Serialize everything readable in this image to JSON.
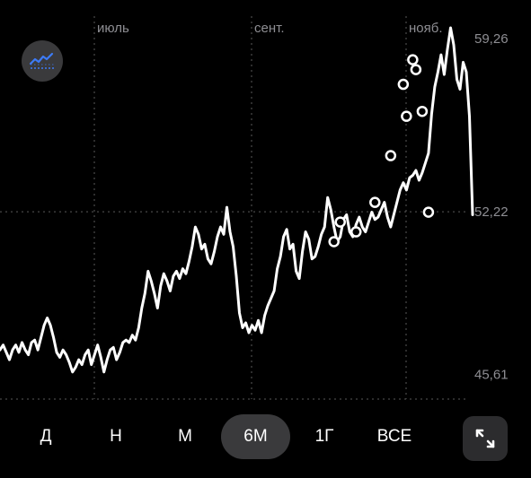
{
  "chart_data": {
    "type": "line",
    "x_labels": [
      "июль",
      "сент.",
      "нояб."
    ],
    "y_tick_labels": [
      "59,26",
      "52,22",
      "45,61"
    ],
    "y_ticks": [
      59.26,
      52.22,
      45.61
    ],
    "ylim": [
      44.6,
      60.1
    ],
    "current_value": 52.22,
    "grid": true,
    "series": [
      {
        "values": [
          46.6,
          46.8,
          46.5,
          46.2,
          46.6,
          46.8,
          46.5,
          46.9,
          46.6,
          46.4,
          46.9,
          47.0,
          46.6,
          47.1,
          47.6,
          47.9,
          47.6,
          47.1,
          46.5,
          46.3,
          46.6,
          46.4,
          46.1,
          45.7,
          45.9,
          46.2,
          46.0,
          46.4,
          46.6,
          46.0,
          46.4,
          46.8,
          46.3,
          45.7,
          46.2,
          46.6,
          46.7,
          46.2,
          46.5,
          46.9,
          47.0,
          46.9,
          47.2,
          47.0,
          47.5,
          48.3,
          48.9,
          49.8,
          49.4,
          48.9,
          48.3,
          49.2,
          49.7,
          49.4,
          49.0,
          49.6,
          49.8,
          49.5,
          49.9,
          49.7,
          50.2,
          50.8,
          51.6,
          51.3,
          50.7,
          50.9,
          50.3,
          50.1,
          50.6,
          51.2,
          51.6,
          51.3,
          52.4,
          51.4,
          50.8,
          49.6,
          48.1,
          47.5,
          47.7,
          47.3,
          47.6,
          47.4,
          47.8,
          47.3,
          48.0,
          48.4,
          48.7,
          49.0,
          49.9,
          50.4,
          51.2,
          51.5,
          50.7,
          50.9,
          49.8,
          49.5,
          50.6,
          51.4,
          51.1,
          50.3,
          50.4,
          50.8,
          51.3,
          51.6,
          52.8,
          52.3,
          51.6,
          51.0,
          51.2,
          51.9,
          52.1,
          51.4,
          51.2,
          51.7,
          52.0,
          51.6,
          51.4,
          51.8,
          52.2,
          51.9,
          52.0,
          52.3,
          52.6,
          52.0,
          51.6,
          52.1,
          52.6,
          53.1,
          53.4,
          53.1,
          53.6,
          53.7,
          53.9,
          53.5,
          53.8,
          54.2,
          54.6,
          56.2,
          57.3,
          57.9,
          58.6,
          57.8,
          58.8,
          59.7,
          59.0,
          57.6,
          57.2,
          58.3,
          57.9,
          56.1,
          52.1
        ]
      }
    ],
    "markers": [
      {
        "i": 106,
        "v": 51.0
      },
      {
        "i": 108,
        "v": 51.8
      },
      {
        "i": 113,
        "v": 51.4
      },
      {
        "i": 119,
        "v": 52.6
      },
      {
        "i": 124,
        "v": 54.5
      },
      {
        "i": 128,
        "v": 57.4
      },
      {
        "i": 129,
        "v": 56.1
      },
      {
        "i": 131,
        "v": 58.4
      },
      {
        "i": 132,
        "v": 58.0
      },
      {
        "i": 134,
        "v": 56.3
      },
      {
        "i": 136,
        "v": 52.2
      }
    ]
  },
  "periods": [
    {
      "label": "Д",
      "active": false
    },
    {
      "label": "Н",
      "active": false
    },
    {
      "label": "М",
      "active": false
    },
    {
      "label": "6М",
      "active": true
    },
    {
      "label": "1Г",
      "active": false
    },
    {
      "label": "ВСЕ",
      "active": false
    }
  ],
  "icons": {
    "indicator": "chart-indicator-icon",
    "expand": "expand-icon"
  },
  "colors": {
    "background": "#000000",
    "line": "#ffffff",
    "grid": "#5a5a5a",
    "axis_label": "#8e8e93",
    "active_pill": "#3a3a3c",
    "indicator_blue": "#3d7bf7"
  }
}
